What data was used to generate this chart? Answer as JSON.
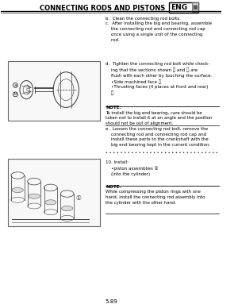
{
  "title": "CONNECTING RODS AND PISTONS",
  "eng_label": "ENG",
  "bg_color": "#ffffff",
  "text_color": "#000000",
  "header_line_color": "#000000",
  "page_number": "5-89",
  "section_bc_text": "b.  Clean the connecting rod bolts.\nc.  After installing the big end bearing, assemble\n    the connecting rod and connecting rod cap\n    once using a single unit of the connecting\n    rod.",
  "section_d_text": "d.  Tighten the connecting rod bolt while check-\n    ing that the sections shown Ⓐ and Ⓑ are\n    flush with each other by touching the surface.\n    •Side machined face Ⓐ\n    •Thrusting faces (4 places at front and rear)\n    Ⓑ",
  "note1_label": "NOTE:",
  "note1_text": "To install the big end bearing, care should be\ntaken not to install it at an angle and the position\nshould not be out of alignment.",
  "section_e_text": "e.  Loosen the connecting rod bolt, remove the\n    connecting rod and connecting rod cap and\n    install these parts to the crankshaft with the\n    big end bearing kept in the current condition.",
  "dots_row": "• • • • • • • • • • • • • • • • • • • • • • • • • • • • • • •",
  "section_10_text": "10. Install:\n    •piston assemblies ①\n    (into the cylinder)",
  "note2_label": "NOTE:",
  "note2_text": "While compressing the piston rings with one\nhand, install the connecting rod assembly into\nthe cylinder with the other hand."
}
